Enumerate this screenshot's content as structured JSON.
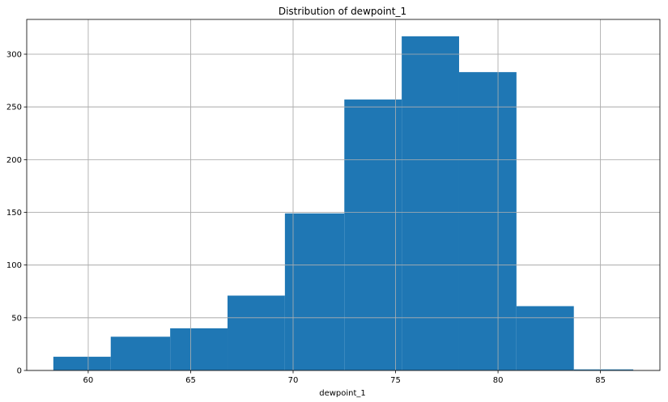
{
  "chart_data": {
    "type": "bar",
    "title": "Distribution of dewpoint_1",
    "xlabel": "dewpoint_1",
    "ylabel": "",
    "bin_edges": [
      58.3,
      61.1,
      64.0,
      66.8,
      69.6,
      72.5,
      75.3,
      78.1,
      80.9,
      83.7,
      86.6
    ],
    "values": [
      13,
      32,
      40,
      71,
      149,
      257,
      317,
      283,
      61,
      1
    ],
    "xlim": [
      57.0,
      87.9
    ],
    "ylim": [
      0,
      333
    ],
    "xticks": [
      60,
      65,
      70,
      75,
      80,
      85
    ],
    "yticks": [
      0,
      50,
      100,
      150,
      200,
      250,
      300
    ],
    "grid": true,
    "bar_color": "#1f77b4",
    "grid_color": "#b0b0b0"
  }
}
